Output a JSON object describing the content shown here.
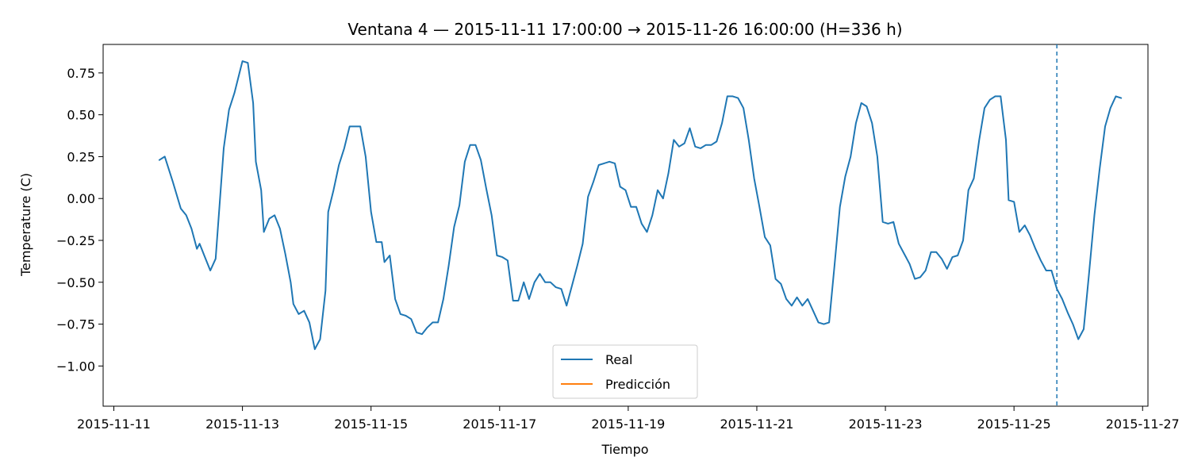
{
  "chart_data": {
    "type": "line",
    "title": "Ventana 4 — 2015-11-11 17:00:00 → 2015-11-26 16:00:00 (H=336 h)",
    "xlabel": "Tiempo",
    "ylabel": "Temperature (C)",
    "xlim": [
      "2015-11-10 20:00",
      "2015-11-27 02:00"
    ],
    "ylim": [
      -1.24,
      0.92
    ],
    "x_ticks": [
      "2015-11-11",
      "2015-11-13",
      "2015-11-15",
      "2015-11-17",
      "2015-11-19",
      "2015-11-21",
      "2015-11-23",
      "2015-11-25",
      "2015-11-27"
    ],
    "y_ticks": [
      0.75,
      0.5,
      0.25,
      0.0,
      -0.25,
      -0.5,
      -0.75,
      -1.0
    ],
    "y_tick_labels": [
      "0.75",
      "0.50",
      "0.25",
      "0.00",
      "−0.25",
      "−0.50",
      "−0.75",
      "−1.00"
    ],
    "vline": {
      "x": "2015-11-25 16:00",
      "color": "#1f77b4",
      "style": "dashed"
    },
    "grid": false,
    "legend": {
      "position": "bottom-center",
      "entries": [
        "Real",
        "Predicción"
      ]
    },
    "series": [
      {
        "name": "Real",
        "color": "#1f77b4",
        "points": [
          [
            "2015-11-11 17:00",
            0.23
          ],
          [
            "2015-11-11 19:00",
            0.25
          ],
          [
            "2015-11-11 22:00",
            0.1
          ],
          [
            "2015-11-12 01:00",
            -0.06
          ],
          [
            "2015-11-12 03:00",
            -0.1
          ],
          [
            "2015-11-12 05:00",
            -0.18
          ],
          [
            "2015-11-12 07:00",
            -0.3
          ],
          [
            "2015-11-12 08:00",
            -0.27
          ],
          [
            "2015-11-12 10:00",
            -0.35
          ],
          [
            "2015-11-12 12:00",
            -0.43
          ],
          [
            "2015-11-12 14:00",
            -0.36
          ],
          [
            "2015-11-12 17:00",
            0.3
          ],
          [
            "2015-11-12 19:00",
            0.53
          ],
          [
            "2015-11-12 21:00",
            0.63
          ],
          [
            "2015-11-13 00:00",
            0.82
          ],
          [
            "2015-11-13 02:00",
            0.81
          ],
          [
            "2015-11-13 04:00",
            0.57
          ],
          [
            "2015-11-13 05:00",
            0.22
          ],
          [
            "2015-11-13 07:00",
            0.05
          ],
          [
            "2015-11-13 08:00",
            -0.2
          ],
          [
            "2015-11-13 10:00",
            -0.12
          ],
          [
            "2015-11-13 12:00",
            -0.1
          ],
          [
            "2015-11-13 14:00",
            -0.18
          ],
          [
            "2015-11-13 16:00",
            -0.33
          ],
          [
            "2015-11-13 18:00",
            -0.5
          ],
          [
            "2015-11-13 19:00",
            -0.63
          ],
          [
            "2015-11-13 21:00",
            -0.69
          ],
          [
            "2015-11-13 23:00",
            -0.67
          ],
          [
            "2015-11-14 01:00",
            -0.74
          ],
          [
            "2015-11-14 03:00",
            -0.9
          ],
          [
            "2015-11-14 05:00",
            -0.84
          ],
          [
            "2015-11-14 07:00",
            -0.55
          ],
          [
            "2015-11-14 08:00",
            -0.08
          ],
          [
            "2015-11-14 10:00",
            0.05
          ],
          [
            "2015-11-14 12:00",
            0.2
          ],
          [
            "2015-11-14 14:00",
            0.3
          ],
          [
            "2015-11-14 16:00",
            0.43
          ],
          [
            "2015-11-14 18:00",
            0.43
          ],
          [
            "2015-11-14 20:00",
            0.43
          ],
          [
            "2015-11-14 22:00",
            0.25
          ],
          [
            "2015-11-15 00:00",
            -0.08
          ],
          [
            "2015-11-15 02:00",
            -0.26
          ],
          [
            "2015-11-15 04:00",
            -0.26
          ],
          [
            "2015-11-15 05:00",
            -0.38
          ],
          [
            "2015-11-15 07:00",
            -0.34
          ],
          [
            "2015-11-15 09:00",
            -0.6
          ],
          [
            "2015-11-15 11:00",
            -0.69
          ],
          [
            "2015-11-15 13:00",
            -0.7
          ],
          [
            "2015-11-15 15:00",
            -0.72
          ],
          [
            "2015-11-15 17:00",
            -0.8
          ],
          [
            "2015-11-15 19:00",
            -0.81
          ],
          [
            "2015-11-15 21:00",
            -0.77
          ],
          [
            "2015-11-15 23:00",
            -0.74
          ],
          [
            "2015-11-16 01:00",
            -0.74
          ],
          [
            "2015-11-16 03:00",
            -0.6
          ],
          [
            "2015-11-16 05:00",
            -0.4
          ],
          [
            "2015-11-16 07:00",
            -0.17
          ],
          [
            "2015-11-16 09:00",
            -0.04
          ],
          [
            "2015-11-16 11:00",
            0.22
          ],
          [
            "2015-11-16 13:00",
            0.32
          ],
          [
            "2015-11-16 15:00",
            0.32
          ],
          [
            "2015-11-16 17:00",
            0.23
          ],
          [
            "2015-11-16 19:00",
            0.06
          ],
          [
            "2015-11-16 21:00",
            -0.1
          ],
          [
            "2015-11-16 23:00",
            -0.34
          ],
          [
            "2015-11-17 01:00",
            -0.35
          ],
          [
            "2015-11-17 03:00",
            -0.37
          ],
          [
            "2015-11-17 05:00",
            -0.61
          ],
          [
            "2015-11-17 07:00",
            -0.61
          ],
          [
            "2015-11-17 09:00",
            -0.5
          ],
          [
            "2015-11-17 11:00",
            -0.6
          ],
          [
            "2015-11-17 13:00",
            -0.5
          ],
          [
            "2015-11-17 15:00",
            -0.45
          ],
          [
            "2015-11-17 17:00",
            -0.5
          ],
          [
            "2015-11-17 19:00",
            -0.5
          ],
          [
            "2015-11-17 21:00",
            -0.53
          ],
          [
            "2015-11-17 23:00",
            -0.54
          ],
          [
            "2015-11-18 01:00",
            -0.64
          ],
          [
            "2015-11-18 03:00",
            -0.52
          ],
          [
            "2015-11-18 05:00",
            -0.4
          ],
          [
            "2015-11-18 07:00",
            -0.27
          ],
          [
            "2015-11-18 09:00",
            0.01
          ],
          [
            "2015-11-18 11:00",
            0.1
          ],
          [
            "2015-11-18 13:00",
            0.2
          ],
          [
            "2015-11-18 15:00",
            0.21
          ],
          [
            "2015-11-18 17:00",
            0.22
          ],
          [
            "2015-11-18 19:00",
            0.21
          ],
          [
            "2015-11-18 21:00",
            0.07
          ],
          [
            "2015-11-18 23:00",
            0.05
          ],
          [
            "2015-11-19 01:00",
            -0.05
          ],
          [
            "2015-11-19 03:00",
            -0.05
          ],
          [
            "2015-11-19 05:00",
            -0.15
          ],
          [
            "2015-11-19 07:00",
            -0.2
          ],
          [
            "2015-11-19 09:00",
            -0.1
          ],
          [
            "2015-11-19 11:00",
            0.05
          ],
          [
            "2015-11-19 13:00",
            0.0
          ],
          [
            "2015-11-19 15:00",
            0.15
          ],
          [
            "2015-11-19 17:00",
            0.35
          ],
          [
            "2015-11-19 19:00",
            0.31
          ],
          [
            "2015-11-19 21:00",
            0.33
          ],
          [
            "2015-11-19 23:00",
            0.42
          ],
          [
            "2015-11-20 01:00",
            0.31
          ],
          [
            "2015-11-20 03:00",
            0.3
          ],
          [
            "2015-11-20 05:00",
            0.32
          ],
          [
            "2015-11-20 07:00",
            0.32
          ],
          [
            "2015-11-20 09:00",
            0.34
          ],
          [
            "2015-11-20 11:00",
            0.45
          ],
          [
            "2015-11-20 13:00",
            0.61
          ],
          [
            "2015-11-20 15:00",
            0.61
          ],
          [
            "2015-11-20 17:00",
            0.6
          ],
          [
            "2015-11-20 19:00",
            0.54
          ],
          [
            "2015-11-20 21:00",
            0.35
          ],
          [
            "2015-11-20 23:00",
            0.12
          ],
          [
            "2015-11-21 01:00",
            -0.05
          ],
          [
            "2015-11-21 03:00",
            -0.23
          ],
          [
            "2015-11-21 05:00",
            -0.28
          ],
          [
            "2015-11-21 07:00",
            -0.48
          ],
          [
            "2015-11-21 09:00",
            -0.51
          ],
          [
            "2015-11-21 11:00",
            -0.6
          ],
          [
            "2015-11-21 13:00",
            -0.64
          ],
          [
            "2015-11-21 15:00",
            -0.59
          ],
          [
            "2015-11-21 17:00",
            -0.64
          ],
          [
            "2015-11-21 19:00",
            -0.6
          ],
          [
            "2015-11-21 21:00",
            -0.67
          ],
          [
            "2015-11-21 23:00",
            -0.74
          ],
          [
            "2015-11-22 01:00",
            -0.75
          ],
          [
            "2015-11-22 03:00",
            -0.74
          ],
          [
            "2015-11-22 05:00",
            -0.4
          ],
          [
            "2015-11-22 07:00",
            -0.05
          ],
          [
            "2015-11-22 09:00",
            0.13
          ],
          [
            "2015-11-22 11:00",
            0.25
          ],
          [
            "2015-11-22 13:00",
            0.45
          ],
          [
            "2015-11-22 15:00",
            0.57
          ],
          [
            "2015-11-22 17:00",
            0.55
          ],
          [
            "2015-11-22 19:00",
            0.45
          ],
          [
            "2015-11-22 21:00",
            0.25
          ],
          [
            "2015-11-22 23:00",
            -0.14
          ],
          [
            "2015-11-23 01:00",
            -0.15
          ],
          [
            "2015-11-23 03:00",
            -0.14
          ],
          [
            "2015-11-23 05:00",
            -0.27
          ],
          [
            "2015-11-23 07:00",
            -0.33
          ],
          [
            "2015-11-23 09:00",
            -0.39
          ],
          [
            "2015-11-23 11:00",
            -0.48
          ],
          [
            "2015-11-23 13:00",
            -0.47
          ],
          [
            "2015-11-23 15:00",
            -0.43
          ],
          [
            "2015-11-23 17:00",
            -0.32
          ],
          [
            "2015-11-23 19:00",
            -0.32
          ],
          [
            "2015-11-23 21:00",
            -0.36
          ],
          [
            "2015-11-23 23:00",
            -0.42
          ],
          [
            "2015-11-24 01:00",
            -0.35
          ],
          [
            "2015-11-24 03:00",
            -0.34
          ],
          [
            "2015-11-24 05:00",
            -0.25
          ],
          [
            "2015-11-24 07:00",
            0.05
          ],
          [
            "2015-11-24 09:00",
            0.12
          ],
          [
            "2015-11-24 11:00",
            0.35
          ],
          [
            "2015-11-24 13:00",
            0.54
          ],
          [
            "2015-11-24 15:00",
            0.59
          ],
          [
            "2015-11-24 17:00",
            0.61
          ],
          [
            "2015-11-24 19:00",
            0.61
          ],
          [
            "2015-11-24 21:00",
            0.35
          ],
          [
            "2015-11-24 22:00",
            -0.01
          ],
          [
            "2015-11-25 00:00",
            -0.02
          ],
          [
            "2015-11-25 02:00",
            -0.2
          ],
          [
            "2015-11-25 04:00",
            -0.16
          ],
          [
            "2015-11-25 06:00",
            -0.22
          ],
          [
            "2015-11-25 08:00",
            -0.3
          ],
          [
            "2015-11-25 10:00",
            -0.37
          ],
          [
            "2015-11-25 12:00",
            -0.43
          ],
          [
            "2015-11-25 14:00",
            -0.43
          ],
          [
            "2015-11-25 16:00",
            -0.54
          ],
          [
            "2015-11-25 18:00",
            -0.6
          ],
          [
            "2015-11-25 20:00",
            -0.68
          ],
          [
            "2015-11-25 22:00",
            -0.75
          ],
          [
            "2015-11-26 00:00",
            -0.84
          ],
          [
            "2015-11-26 02:00",
            -0.78
          ],
          [
            "2015-11-26 04:00",
            -0.45
          ],
          [
            "2015-11-26 06:00",
            -0.1
          ],
          [
            "2015-11-26 08:00",
            0.18
          ],
          [
            "2015-11-26 10:00",
            0.43
          ],
          [
            "2015-11-26 12:00",
            0.54
          ],
          [
            "2015-11-26 14:00",
            0.61
          ],
          [
            "2015-11-26 16:00",
            0.6
          ]
        ]
      }
    ]
  }
}
